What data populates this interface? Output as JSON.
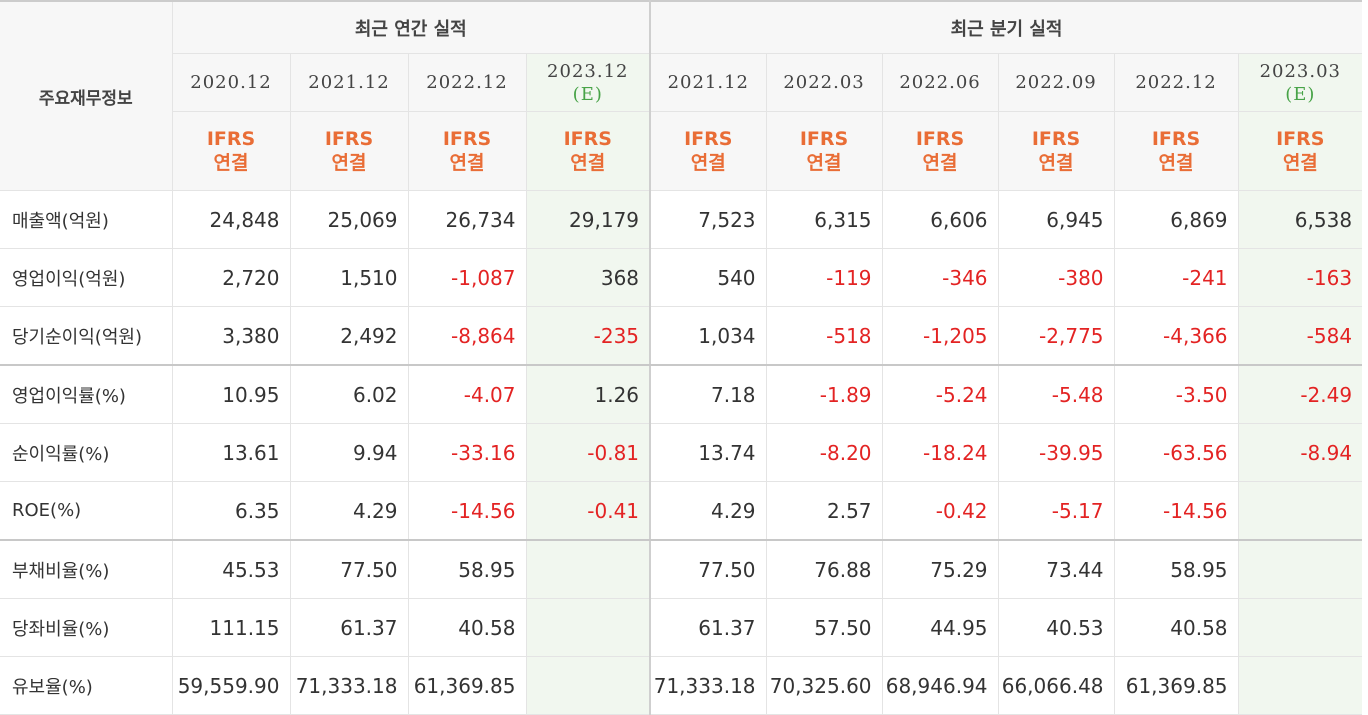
{
  "header": {
    "row_label": "주요재무정보",
    "annual_title": "최근 연간 실적",
    "quarterly_title": "최근 분기 실적",
    "columns": [
      {
        "date": "2020.12",
        "est": "",
        "ifrs": "IFRS",
        "basis": "연결",
        "estimate": false
      },
      {
        "date": "2021.12",
        "est": "",
        "ifrs": "IFRS",
        "basis": "연결",
        "estimate": false
      },
      {
        "date": "2022.12",
        "est": "",
        "ifrs": "IFRS",
        "basis": "연결",
        "estimate": false
      },
      {
        "date": "2023.12",
        "est": "(E)",
        "ifrs": "IFRS",
        "basis": "연결",
        "estimate": true
      },
      {
        "date": "2021.12",
        "est": "",
        "ifrs": "IFRS",
        "basis": "연결",
        "estimate": false
      },
      {
        "date": "2022.03",
        "est": "",
        "ifrs": "IFRS",
        "basis": "연결",
        "estimate": false
      },
      {
        "date": "2022.06",
        "est": "",
        "ifrs": "IFRS",
        "basis": "연결",
        "estimate": false
      },
      {
        "date": "2022.09",
        "est": "",
        "ifrs": "IFRS",
        "basis": "연결",
        "estimate": false
      },
      {
        "date": "2022.12",
        "est": "",
        "ifrs": "IFRS",
        "basis": "연결",
        "estimate": false
      },
      {
        "date": "2023.03",
        "est": "(E)",
        "ifrs": "IFRS",
        "basis": "연결",
        "estimate": true
      }
    ]
  },
  "rows": [
    {
      "label": "매출액(억원)",
      "values": [
        "24,848",
        "25,069",
        "26,734",
        "29,179",
        "7,523",
        "6,315",
        "6,606",
        "6,945",
        "6,869",
        "6,538"
      ]
    },
    {
      "label": "영업이익(억원)",
      "values": [
        "2,720",
        "1,510",
        "-1,087",
        "368",
        "540",
        "-119",
        "-346",
        "-380",
        "-241",
        "-163"
      ]
    },
    {
      "label": "당기순이익(억원)",
      "values": [
        "3,380",
        "2,492",
        "-8,864",
        "-235",
        "1,034",
        "-518",
        "-1,205",
        "-2,775",
        "-4,366",
        "-584"
      ]
    },
    {
      "label": "영업이익률(%)",
      "values": [
        "10.95",
        "6.02",
        "-4.07",
        "1.26",
        "7.18",
        "-1.89",
        "-5.24",
        "-5.48",
        "-3.50",
        "-2.49"
      ]
    },
    {
      "label": "순이익률(%)",
      "values": [
        "13.61",
        "9.94",
        "-33.16",
        "-0.81",
        "13.74",
        "-8.20",
        "-18.24",
        "-39.95",
        "-63.56",
        "-8.94"
      ]
    },
    {
      "label": "ROE(%)",
      "values": [
        "6.35",
        "4.29",
        "-14.56",
        "-0.41",
        "4.29",
        "2.57",
        "-0.42",
        "-5.17",
        "-14.56",
        ""
      ]
    },
    {
      "label": "부채비율(%)",
      "values": [
        "45.53",
        "77.50",
        "58.95",
        "",
        "77.50",
        "76.88",
        "75.29",
        "73.44",
        "58.95",
        ""
      ]
    },
    {
      "label": "당좌비율(%)",
      "values": [
        "111.15",
        "61.37",
        "40.58",
        "",
        "61.37",
        "57.50",
        "44.95",
        "40.53",
        "40.58",
        ""
      ]
    },
    {
      "label": "유보율(%)",
      "values": [
        "59,559.90",
        "71,333.18",
        "61,369.85",
        "",
        "71,333.18",
        "70,325.60",
        "68,946.94",
        "66,066.48",
        "61,369.85",
        ""
      ]
    }
  ],
  "colors": {
    "negative": "#e32323",
    "ifrs": "#e96d36",
    "estimate_mark": "#47a347",
    "estimate_bg": "#f1f7ef",
    "header_bg": "#f7f7f7"
  }
}
